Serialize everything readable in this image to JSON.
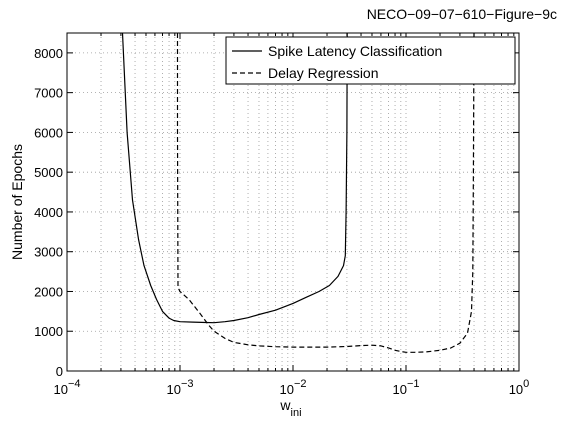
{
  "chart_data": {
    "type": "line",
    "title": "NECO−09−07−610−Figure−9c",
    "xlabel_base": "w",
    "xlabel_sub": "ini",
    "ylabel": "Number of Epochs",
    "xscale": "log",
    "xlim": [
      0.0001,
      1
    ],
    "ylim": [
      0,
      8500
    ],
    "grid": "dotted, major and minor",
    "legend_position": "top-right",
    "x_tick_labels": [
      {
        "base": "10",
        "exp": "−4"
      },
      {
        "base": "10",
        "exp": "−3"
      },
      {
        "base": "10",
        "exp": "−2"
      },
      {
        "base": "10",
        "exp": "−1"
      },
      {
        "base": "10",
        "exp": "0"
      }
    ],
    "y_ticks": [
      0,
      1000,
      2000,
      3000,
      4000,
      5000,
      6000,
      7000,
      8000
    ],
    "series": [
      {
        "name": "Spike Latency Classification",
        "style": "solid",
        "color": "#000000",
        "points": [
          [
            0.00031,
            8500
          ],
          [
            0.00034,
            6000
          ],
          [
            0.00038,
            4300
          ],
          [
            0.00043,
            3300
          ],
          [
            0.00048,
            2650
          ],
          [
            0.00055,
            2150
          ],
          [
            0.00062,
            1800
          ],
          [
            0.0007,
            1500
          ],
          [
            0.0008,
            1330
          ],
          [
            0.00088,
            1270
          ],
          [
            0.001,
            1240
          ],
          [
            0.0013,
            1230
          ],
          [
            0.0017,
            1220
          ],
          [
            0.002,
            1215
          ],
          [
            0.0025,
            1240
          ],
          [
            0.003,
            1270
          ],
          [
            0.004,
            1340
          ],
          [
            0.005,
            1420
          ],
          [
            0.007,
            1530
          ],
          [
            0.01,
            1700
          ],
          [
            0.013,
            1850
          ],
          [
            0.017,
            2000
          ],
          [
            0.021,
            2150
          ],
          [
            0.025,
            2380
          ],
          [
            0.028,
            2650
          ],
          [
            0.029,
            2900
          ],
          [
            0.0295,
            4000
          ],
          [
            0.03,
            6000
          ],
          [
            0.0302,
            8500
          ]
        ]
      },
      {
        "name": "Delay Regression",
        "style": "dashed",
        "color": "#000000",
        "points": [
          [
            0.00095,
            8500
          ],
          [
            0.00095,
            6000
          ],
          [
            0.00096,
            2100
          ],
          [
            0.001,
            2000
          ],
          [
            0.0012,
            1800
          ],
          [
            0.0015,
            1450
          ],
          [
            0.0018,
            1150
          ],
          [
            0.002,
            1000
          ],
          [
            0.0025,
            820
          ],
          [
            0.003,
            720
          ],
          [
            0.004,
            660
          ],
          [
            0.005,
            630
          ],
          [
            0.007,
            610
          ],
          [
            0.01,
            600
          ],
          [
            0.015,
            600
          ],
          [
            0.02,
            600
          ],
          [
            0.03,
            615
          ],
          [
            0.04,
            640
          ],
          [
            0.05,
            650
          ],
          [
            0.06,
            630
          ],
          [
            0.07,
            580
          ],
          [
            0.08,
            520
          ],
          [
            0.09,
            490
          ],
          [
            0.1,
            470
          ],
          [
            0.12,
            470
          ],
          [
            0.15,
            480
          ],
          [
            0.2,
            520
          ],
          [
            0.25,
            580
          ],
          [
            0.3,
            700
          ],
          [
            0.35,
            950
          ],
          [
            0.38,
            1500
          ],
          [
            0.39,
            2500
          ],
          [
            0.395,
            5000
          ],
          [
            0.4,
            8500
          ]
        ]
      }
    ]
  }
}
